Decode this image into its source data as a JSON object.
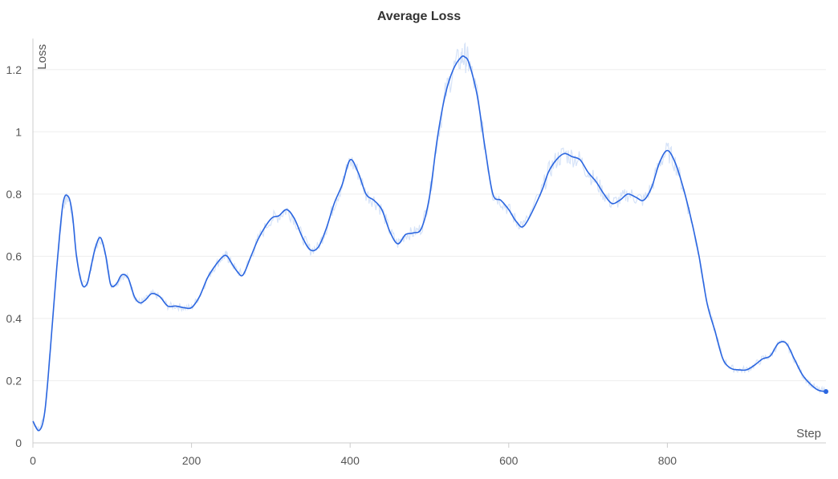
{
  "chart_data": {
    "type": "line",
    "title": "Average Loss",
    "xlabel": "Step",
    "ylabel": "Loss",
    "xlim": [
      0,
      1000
    ],
    "ylim": [
      0,
      1.3
    ],
    "xticks": [
      0,
      200,
      400,
      600,
      800
    ],
    "yticks": [
      0,
      0.2,
      0.4,
      0.6,
      0.8,
      1,
      1.2
    ],
    "xtick_labels": [
      "0",
      "200",
      "400",
      "600",
      "800"
    ],
    "ytick_labels": [
      "0",
      "0.2",
      "0.4",
      "0.6",
      "0.8",
      "1",
      "1.2"
    ],
    "grid": "horizontal",
    "colors": {
      "smoothed": "#2b66e0",
      "raw": "#d6e3f8",
      "grid": "#eeeeee",
      "axis": "#cccccc"
    },
    "series": [
      {
        "role": "smoothed",
        "x": [
          0,
          8,
          15,
          22,
          30,
          38,
          45,
          50,
          55,
          62,
          68,
          72,
          78,
          85,
          92,
          98,
          105,
          112,
          120,
          128,
          135,
          142,
          150,
          160,
          170,
          180,
          190,
          200,
          210,
          220,
          230,
          240,
          245,
          250,
          258,
          265,
          275,
          285,
          300,
          310,
          320,
          330,
          340,
          350,
          360,
          370,
          380,
          390,
          400,
          410,
          420,
          430,
          440,
          450,
          460,
          470,
          480,
          490,
          500,
          510,
          520,
          530,
          540,
          545,
          550,
          560,
          570,
          580,
          590,
          600,
          610,
          620,
          640,
          650,
          660,
          670,
          680,
          690,
          700,
          710,
          720,
          730,
          740,
          750,
          760,
          770,
          780,
          790,
          800,
          810,
          820,
          830,
          840,
          850,
          860,
          870,
          880,
          890,
          900,
          910,
          920,
          930,
          940,
          950,
          960,
          970,
          980,
          990,
          1000
        ],
        "y": [
          0.07,
          0.04,
          0.1,
          0.3,
          0.56,
          0.77,
          0.79,
          0.73,
          0.6,
          0.51,
          0.51,
          0.55,
          0.62,
          0.66,
          0.6,
          0.51,
          0.51,
          0.54,
          0.53,
          0.47,
          0.45,
          0.46,
          0.48,
          0.47,
          0.44,
          0.44,
          0.435,
          0.435,
          0.47,
          0.53,
          0.57,
          0.6,
          0.6,
          0.58,
          0.55,
          0.54,
          0.6,
          0.66,
          0.72,
          0.73,
          0.75,
          0.72,
          0.66,
          0.62,
          0.63,
          0.69,
          0.77,
          0.83,
          0.91,
          0.87,
          0.8,
          0.78,
          0.75,
          0.68,
          0.64,
          0.67,
          0.675,
          0.69,
          0.79,
          0.98,
          1.12,
          1.2,
          1.24,
          1.24,
          1.22,
          1.12,
          0.95,
          0.8,
          0.78,
          0.75,
          0.71,
          0.7,
          0.8,
          0.87,
          0.91,
          0.93,
          0.92,
          0.91,
          0.87,
          0.84,
          0.8,
          0.77,
          0.78,
          0.8,
          0.79,
          0.78,
          0.82,
          0.9,
          0.94,
          0.9,
          0.82,
          0.72,
          0.6,
          0.45,
          0.36,
          0.27,
          0.24,
          0.235,
          0.235,
          0.25,
          0.27,
          0.28,
          0.32,
          0.32,
          0.27,
          0.22,
          0.19,
          0.17,
          0.165
        ]
      }
    ]
  }
}
